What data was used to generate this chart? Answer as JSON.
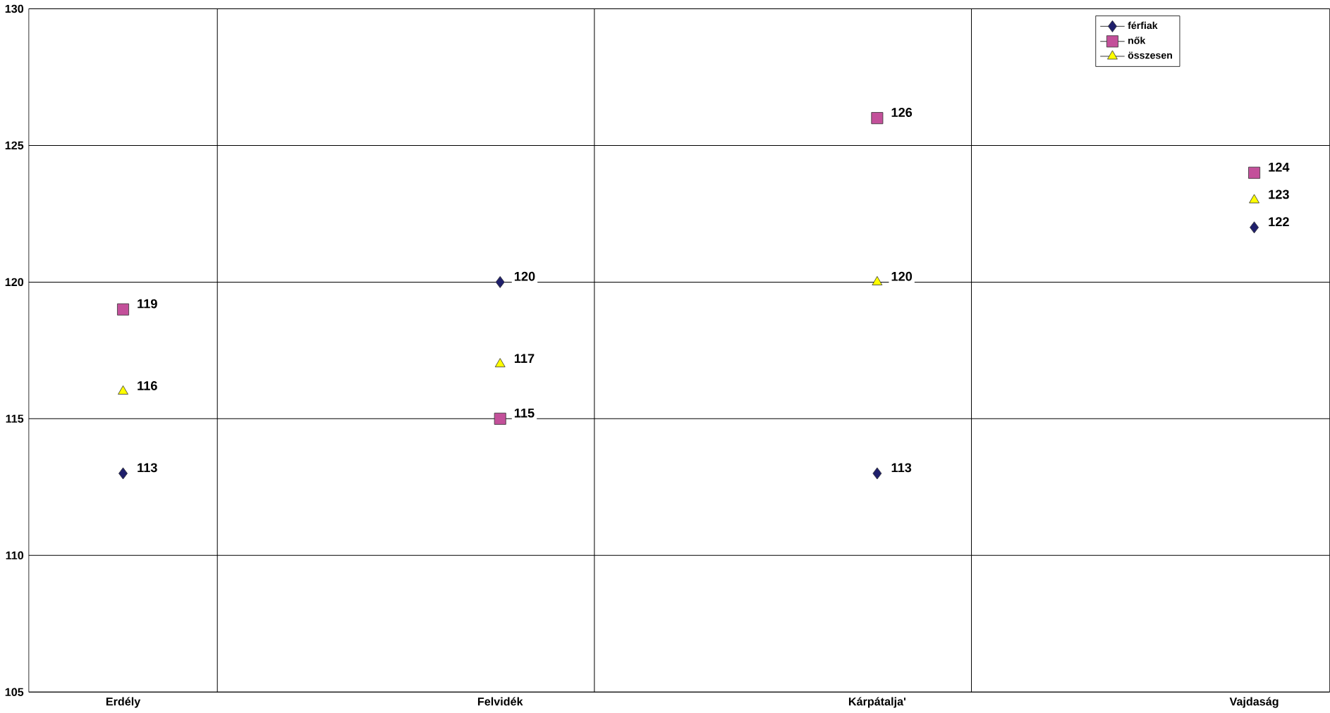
{
  "chart_data": {
    "type": "scatter",
    "categories": [
      "Erdély",
      "Felvidék",
      "Kárpátalja'",
      "Vajdaság"
    ],
    "series": [
      {
        "name": "férfiak",
        "color": "#1f1f6b",
        "marker": "diamond",
        "values": [
          113,
          120,
          113,
          122
        ]
      },
      {
        "name": "nők",
        "color": "#c3509a",
        "marker": "square",
        "values": [
          119,
          115,
          126,
          124
        ]
      },
      {
        "name": "összesen",
        "color": "#ffff00",
        "marker": "triangle",
        "values": [
          116,
          117,
          120,
          123
        ]
      }
    ],
    "ylim": [
      105,
      130
    ],
    "yticks": [
      105,
      110,
      115,
      120,
      125,
      130
    ],
    "grid": true,
    "legend": "top right",
    "data_labels": true
  }
}
